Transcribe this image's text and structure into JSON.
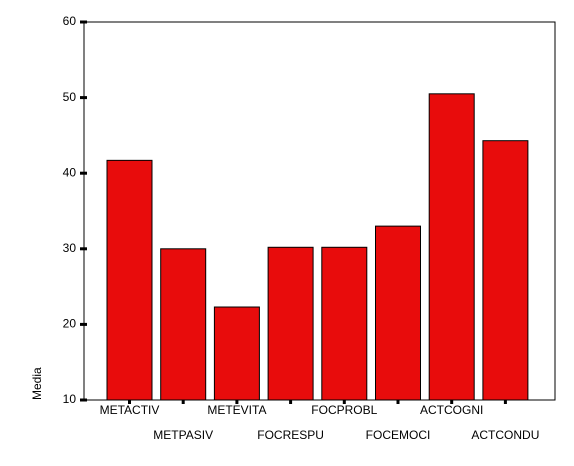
{
  "chart_data": {
    "type": "bar",
    "y_label": "Media",
    "categories": [
      "METACTIV",
      "METPASIV",
      "METEVITA",
      "FOCRESPU",
      "FOCPROBL",
      "FOCEMOCI",
      "ACTCOGNI",
      "ACTCONDU"
    ],
    "values": [
      41.7,
      30.0,
      22.3,
      30.2,
      30.2,
      33.0,
      50.5,
      44.3
    ],
    "color": "#e80c0c",
    "ylim": [
      10,
      60
    ],
    "yticks": [
      10,
      20,
      30,
      40,
      50,
      60
    ],
    "grid": false
  }
}
